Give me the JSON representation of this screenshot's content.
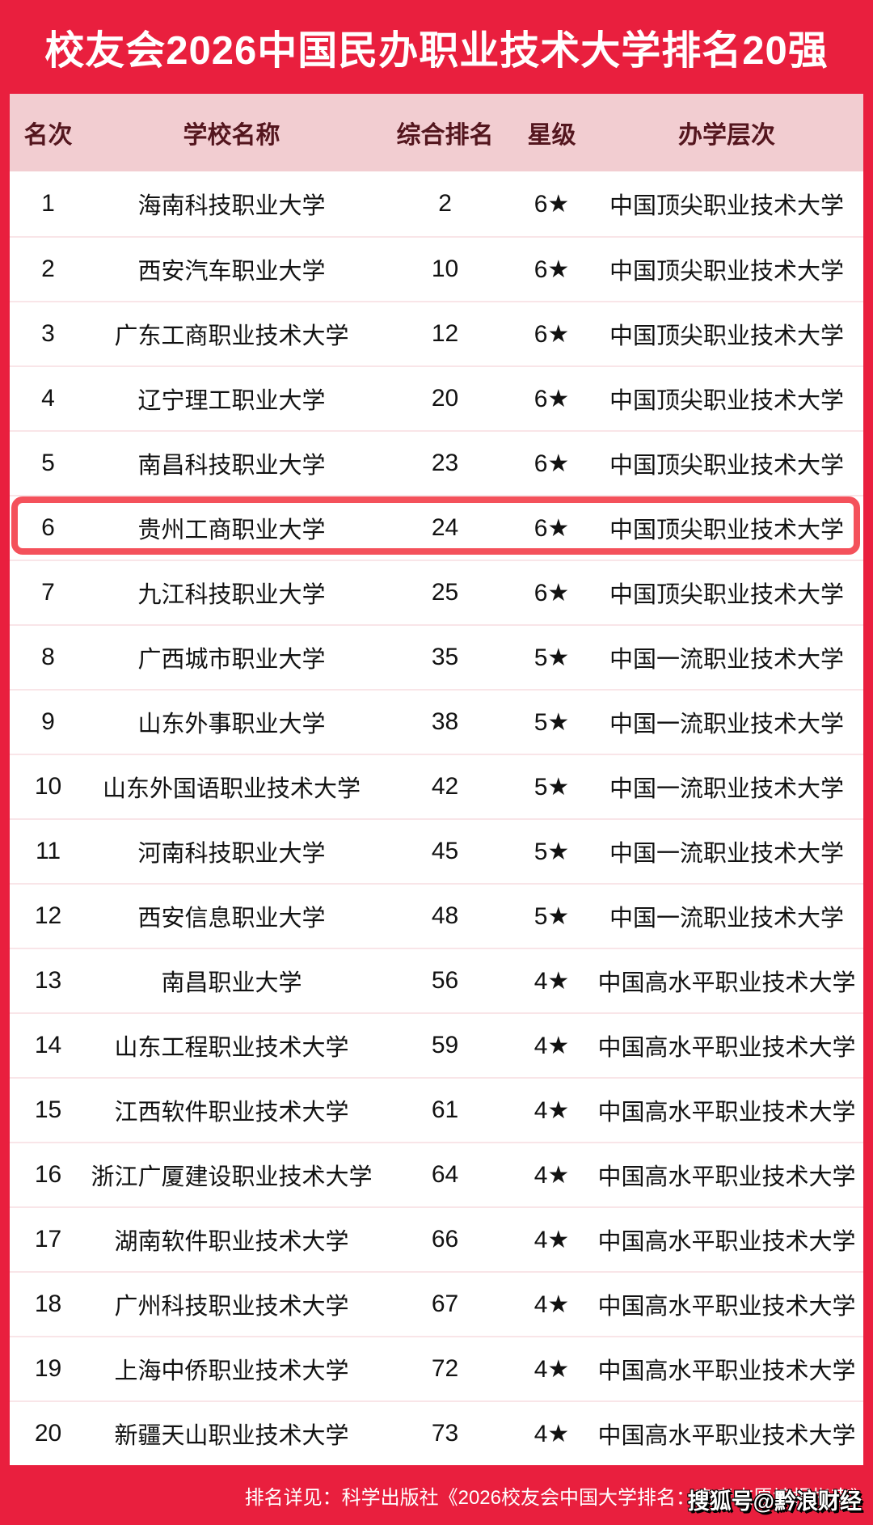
{
  "title": "校友会2026中国民办职业技术大学排名20强",
  "colors": {
    "background_red": "#E91F3E",
    "header_pink": "#F2CDD1",
    "header_text_maroon": "#54161E",
    "row_separator": "#F9E5E8",
    "highlight_border": "#F4515B",
    "body_text": "#121212",
    "title_text": "#FFFFFF"
  },
  "chart_data": {
    "type": "table",
    "title": "校友会2026中国民办职业技术大学排名20强",
    "columns": [
      "名次",
      "学校名称",
      "综合排名",
      "星级",
      "办学层次"
    ],
    "highlight_row_rank": 6,
    "rows": [
      {
        "rank": "1",
        "school": "海南科技职业大学",
        "overall": "2",
        "star": "6★",
        "level": "中国顶尖职业技术大学"
      },
      {
        "rank": "2",
        "school": "西安汽车职业大学",
        "overall": "10",
        "star": "6★",
        "level": "中国顶尖职业技术大学"
      },
      {
        "rank": "3",
        "school": "广东工商职业技术大学",
        "overall": "12",
        "star": "6★",
        "level": "中国顶尖职业技术大学"
      },
      {
        "rank": "4",
        "school": "辽宁理工职业大学",
        "overall": "20",
        "star": "6★",
        "level": "中国顶尖职业技术大学"
      },
      {
        "rank": "5",
        "school": "南昌科技职业大学",
        "overall": "23",
        "star": "6★",
        "level": "中国顶尖职业技术大学"
      },
      {
        "rank": "6",
        "school": "贵州工商职业大学",
        "overall": "24",
        "star": "6★",
        "level": "中国顶尖职业技术大学"
      },
      {
        "rank": "7",
        "school": "九江科技职业大学",
        "overall": "25",
        "star": "6★",
        "level": "中国顶尖职业技术大学"
      },
      {
        "rank": "8",
        "school": "广西城市职业大学",
        "overall": "35",
        "star": "5★",
        "level": "中国一流职业技术大学"
      },
      {
        "rank": "9",
        "school": "山东外事职业大学",
        "overall": "38",
        "star": "5★",
        "level": "中国一流职业技术大学"
      },
      {
        "rank": "10",
        "school": "山东外国语职业技术大学",
        "overall": "42",
        "star": "5★",
        "level": "中国一流职业技术大学"
      },
      {
        "rank": "11",
        "school": "河南科技职业大学",
        "overall": "45",
        "star": "5★",
        "level": "中国一流职业技术大学"
      },
      {
        "rank": "12",
        "school": "西安信息职业大学",
        "overall": "48",
        "star": "5★",
        "level": "中国一流职业技术大学"
      },
      {
        "rank": "13",
        "school": "南昌职业大学",
        "overall": "56",
        "star": "4★",
        "level": "中国高水平职业技术大学"
      },
      {
        "rank": "14",
        "school": "山东工程职业技术大学",
        "overall": "59",
        "star": "4★",
        "level": "中国高水平职业技术大学"
      },
      {
        "rank": "15",
        "school": "江西软件职业技术大学",
        "overall": "61",
        "star": "4★",
        "level": "中国高水平职业技术大学"
      },
      {
        "rank": "16",
        "school": "浙江广厦建设职业技术大学",
        "overall": "64",
        "star": "4★",
        "level": "中国高水平职业技术大学"
      },
      {
        "rank": "17",
        "school": "湖南软件职业技术大学",
        "overall": "66",
        "star": "4★",
        "level": "中国高水平职业技术大学"
      },
      {
        "rank": "18",
        "school": "广州科技职业技术大学",
        "overall": "67",
        "star": "4★",
        "level": "中国高水平职业技术大学"
      },
      {
        "rank": "19",
        "school": "上海中侨职业技术大学",
        "overall": "72",
        "star": "4★",
        "level": "中国高水平职业技术大学"
      },
      {
        "rank": "20",
        "school": "新疆天山职业技术大学",
        "overall": "73",
        "star": "4★",
        "level": "中国高水平职业技术大学"
      }
    ]
  },
  "footer": {
    "note": "排名详见：科学出版社《2026校友会中国大学排名：高考志愿填报指南》"
  },
  "watermark": "搜狐号@黔浪财经"
}
